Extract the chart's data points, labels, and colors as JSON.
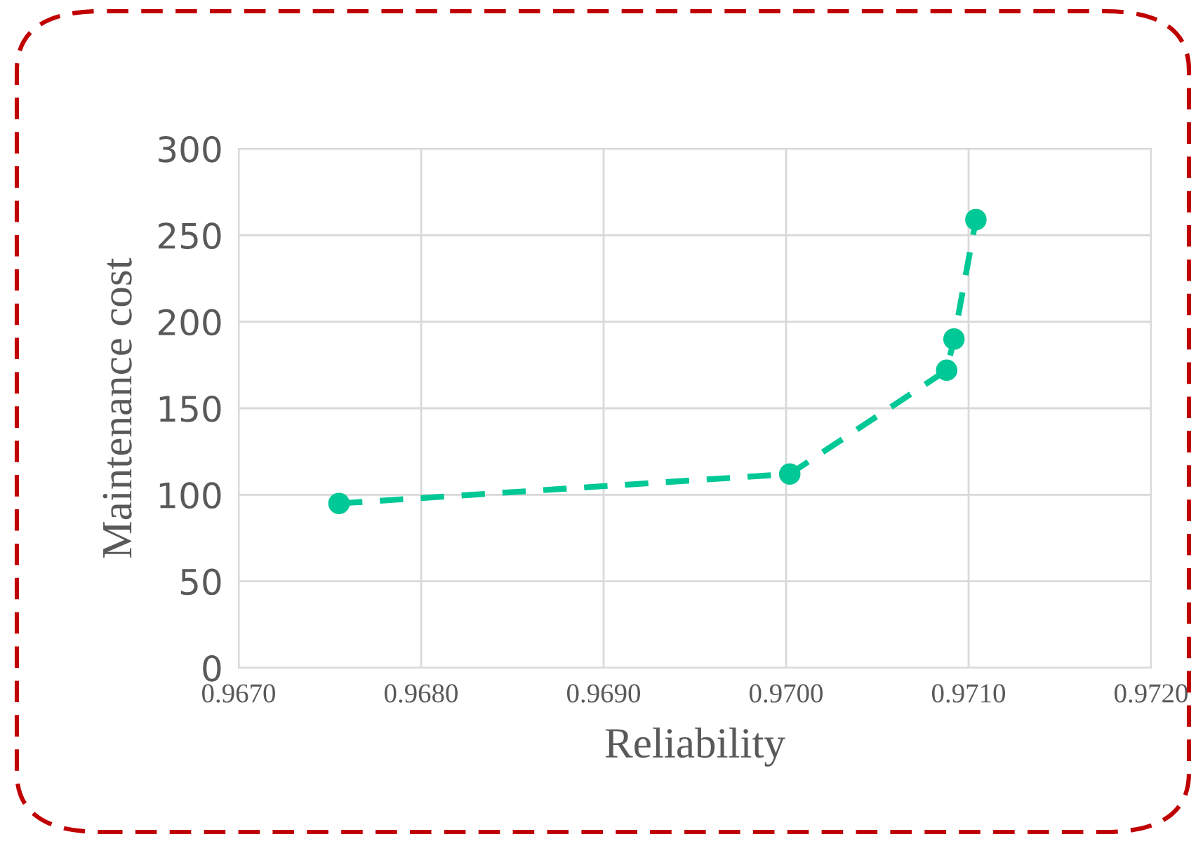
{
  "chart_data": {
    "type": "line",
    "xlabel": "Reliability",
    "ylabel": "Maintenance cost",
    "x": [
      0.96755,
      0.97002,
      0.97088,
      0.97092,
      0.97104
    ],
    "series": [
      {
        "color": "#00c896",
        "values": [
          95,
          112,
          172,
          190,
          259
        ]
      }
    ],
    "xlim": [
      0.967,
      0.972
    ],
    "xticks": [
      {
        "value": 0.967,
        "label": "0.9670"
      },
      {
        "value": 0.968,
        "label": "0.9680"
      },
      {
        "value": 0.969,
        "label": "0.9690"
      },
      {
        "value": 0.97,
        "label": "0.9700"
      },
      {
        "value": 0.971,
        "label": "0.9710"
      },
      {
        "value": 0.972,
        "label": "0.9720"
      }
    ],
    "ylim": [
      0,
      300
    ],
    "yticks": [
      0,
      50,
      100,
      150,
      200,
      250,
      300
    ],
    "grid": true,
    "marker": "circle",
    "line_style": "dashed"
  }
}
